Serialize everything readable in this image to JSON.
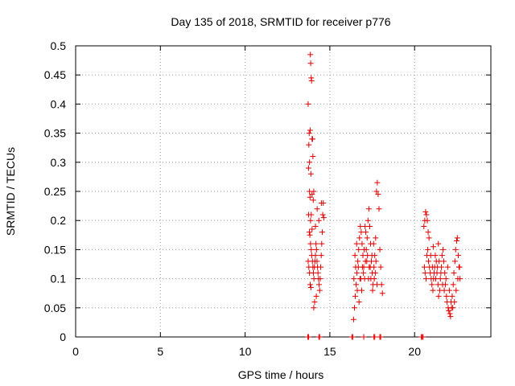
{
  "chart_data": {
    "type": "scatter",
    "title": "Day 135 of 2018, SRMTID for receiver p776",
    "xlabel": "GPS time / hours",
    "ylabel": "SRMTID / TECUs",
    "xlim": [
      0,
      24.5
    ],
    "ylim": [
      0,
      0.5
    ],
    "x_ticks": [
      0,
      5,
      10,
      15,
      20
    ],
    "x_tick_labels": [
      "0",
      "5",
      "10",
      "15",
      "20"
    ],
    "y_ticks": [
      0,
      0.05,
      0.1,
      0.15,
      0.2,
      0.25,
      0.3,
      0.35,
      0.4,
      0.45,
      0.5
    ],
    "y_tick_labels": [
      "0",
      "0.05",
      "0.1",
      "0.15",
      "0.2",
      "0.25",
      "0.3",
      "0.35",
      "0.4",
      "0.45",
      "0.5"
    ],
    "grid": true,
    "marker": "+",
    "colors": {
      "series": "#e00000",
      "grid": "#a0a0a0",
      "axis": "#000000"
    },
    "series": [
      {
        "name": "SRMTID",
        "points": [
          [
            13.72,
            0.4
          ],
          [
            13.76,
            0.33
          ],
          [
            13.8,
            0.3
          ],
          [
            13.85,
            0.485
          ],
          [
            13.87,
            0.47
          ],
          [
            13.9,
            0.445
          ],
          [
            13.92,
            0.44
          ],
          [
            13.78,
            0.35
          ],
          [
            13.84,
            0.355
          ],
          [
            13.95,
            0.34
          ],
          [
            13.98,
            0.34
          ],
          [
            13.74,
            0.29
          ],
          [
            13.88,
            0.28
          ],
          [
            14.0,
            0.31
          ],
          [
            13.8,
            0.25
          ],
          [
            13.83,
            0.24
          ],
          [
            13.86,
            0.2
          ],
          [
            13.9,
            0.21
          ],
          [
            13.95,
            0.245
          ],
          [
            14.02,
            0.235
          ],
          [
            14.05,
            0.25
          ],
          [
            13.75,
            0.21
          ],
          [
            13.79,
            0.18
          ],
          [
            13.82,
            0.175
          ],
          [
            13.86,
            0.16
          ],
          [
            13.9,
            0.15
          ],
          [
            13.93,
            0.14
          ],
          [
            13.97,
            0.13
          ],
          [
            14.0,
            0.12
          ],
          [
            14.03,
            0.11
          ],
          [
            14.06,
            0.1
          ],
          [
            14.09,
            0.12
          ],
          [
            14.12,
            0.13
          ],
          [
            14.15,
            0.14
          ],
          [
            14.18,
            0.16
          ],
          [
            14.21,
            0.15
          ],
          [
            14.24,
            0.13
          ],
          [
            14.27,
            0.12
          ],
          [
            14.3,
            0.11
          ],
          [
            14.33,
            0.1
          ],
          [
            14.36,
            0.09
          ],
          [
            14.4,
            0.08
          ],
          [
            14.43,
            0.1
          ],
          [
            14.46,
            0.12
          ],
          [
            14.49,
            0.14
          ],
          [
            14.52,
            0.16
          ],
          [
            14.55,
            0.18
          ],
          [
            14.58,
            0.21
          ],
          [
            14.61,
            0.23
          ],
          [
            14.64,
            0.205
          ],
          [
            13.72,
            0.13
          ],
          [
            13.76,
            0.12
          ],
          [
            13.8,
            0.11
          ],
          [
            13.84,
            0.09
          ],
          [
            13.88,
            0.085
          ],
          [
            14.1,
            0.06
          ],
          [
            14.05,
            0.05
          ],
          [
            14.2,
            0.07
          ],
          [
            14.35,
            0.2
          ],
          [
            14.25,
            0.22
          ],
          [
            14.15,
            0.19
          ],
          [
            13.95,
            0.185
          ],
          [
            14.5,
            0.23
          ],
          [
            16.4,
            0.03
          ],
          [
            16.45,
            0.05
          ],
          [
            16.5,
            0.07
          ],
          [
            16.55,
            0.09
          ],
          [
            16.6,
            0.11
          ],
          [
            16.65,
            0.13
          ],
          [
            16.7,
            0.15
          ],
          [
            16.75,
            0.17
          ],
          [
            16.8,
            0.19
          ],
          [
            16.85,
            0.18
          ],
          [
            16.9,
            0.16
          ],
          [
            16.95,
            0.14
          ],
          [
            17.0,
            0.12
          ],
          [
            17.05,
            0.1
          ],
          [
            17.1,
            0.13
          ],
          [
            17.15,
            0.15
          ],
          [
            17.2,
            0.17
          ],
          [
            17.25,
            0.2
          ],
          [
            17.3,
            0.22
          ],
          [
            17.35,
            0.19
          ],
          [
            17.4,
            0.16
          ],
          [
            17.45,
            0.13
          ],
          [
            17.5,
            0.11
          ],
          [
            17.55,
            0.09
          ],
          [
            17.6,
            0.12
          ],
          [
            17.65,
            0.14
          ],
          [
            17.7,
            0.17
          ],
          [
            17.75,
            0.25
          ],
          [
            17.8,
            0.265
          ],
          [
            17.85,
            0.245
          ],
          [
            17.9,
            0.22
          ],
          [
            17.95,
            0.15
          ],
          [
            18.0,
            0.12
          ],
          [
            18.05,
            0.09
          ],
          [
            18.1,
            0.075
          ],
          [
            16.42,
            0.1
          ],
          [
            16.52,
            0.12
          ],
          [
            16.62,
            0.08
          ],
          [
            16.72,
            0.06
          ],
          [
            16.82,
            0.1
          ],
          [
            16.92,
            0.12
          ],
          [
            17.02,
            0.15
          ],
          [
            17.12,
            0.18
          ],
          [
            17.22,
            0.14
          ],
          [
            17.32,
            0.12
          ],
          [
            17.42,
            0.1
          ],
          [
            17.52,
            0.08
          ],
          [
            17.62,
            0.1
          ],
          [
            17.72,
            0.13
          ],
          [
            16.48,
            0.14
          ],
          [
            16.58,
            0.16
          ],
          [
            16.68,
            0.12
          ],
          [
            16.78,
            0.1
          ],
          [
            16.88,
            0.08
          ],
          [
            16.98,
            0.11
          ],
          [
            17.08,
            0.19
          ],
          [
            17.18,
            0.13
          ],
          [
            17.28,
            0.1
          ],
          [
            17.38,
            0.12
          ],
          [
            17.48,
            0.14
          ],
          [
            17.58,
            0.16
          ],
          [
            17.68,
            0.11
          ],
          [
            17.78,
            0.09
          ],
          [
            20.55,
            0.19
          ],
          [
            20.6,
            0.2
          ],
          [
            20.65,
            0.215
          ],
          [
            20.7,
            0.21
          ],
          [
            20.75,
            0.2
          ],
          [
            20.8,
            0.18
          ],
          [
            20.85,
            0.17
          ],
          [
            20.58,
            0.12
          ],
          [
            20.62,
            0.11
          ],
          [
            20.68,
            0.1
          ],
          [
            20.72,
            0.14
          ],
          [
            20.78,
            0.15
          ],
          [
            20.82,
            0.13
          ],
          [
            20.88,
            0.12
          ],
          [
            20.92,
            0.11
          ],
          [
            20.98,
            0.1
          ],
          [
            21.02,
            0.09
          ],
          [
            21.08,
            0.08
          ],
          [
            21.12,
            0.1
          ],
          [
            21.18,
            0.12
          ],
          [
            21.22,
            0.14
          ],
          [
            21.28,
            0.13
          ],
          [
            21.32,
            0.11
          ],
          [
            21.38,
            0.09
          ],
          [
            21.42,
            0.07
          ],
          [
            21.48,
            0.08
          ],
          [
            21.52,
            0.1
          ],
          [
            21.58,
            0.12
          ],
          [
            21.62,
            0.14
          ],
          [
            21.68,
            0.15
          ],
          [
            21.72,
            0.13
          ],
          [
            21.78,
            0.11
          ],
          [
            21.82,
            0.09
          ],
          [
            21.88,
            0.07
          ],
          [
            21.92,
            0.06
          ],
          [
            21.98,
            0.05
          ],
          [
            22.02,
            0.045
          ],
          [
            22.08,
            0.04
          ],
          [
            22.12,
            0.035
          ],
          [
            22.18,
            0.05
          ],
          [
            22.22,
            0.07
          ],
          [
            22.28,
            0.09
          ],
          [
            22.32,
            0.11
          ],
          [
            22.38,
            0.13
          ],
          [
            22.42,
            0.15
          ],
          [
            22.48,
            0.165
          ],
          [
            22.52,
            0.17
          ],
          [
            22.58,
            0.14
          ],
          [
            22.62,
            0.12
          ],
          [
            22.68,
            0.1
          ],
          [
            20.95,
            0.14
          ],
          [
            21.05,
            0.12
          ],
          [
            21.15,
            0.11
          ],
          [
            21.25,
            0.1
          ],
          [
            21.35,
            0.12
          ],
          [
            21.45,
            0.13
          ],
          [
            21.55,
            0.11
          ],
          [
            21.65,
            0.09
          ],
          [
            21.75,
            0.08
          ],
          [
            21.85,
            0.1
          ],
          [
            21.95,
            0.12
          ],
          [
            22.05,
            0.08
          ],
          [
            22.15,
            0.06
          ],
          [
            22.25,
            0.05
          ],
          [
            22.35,
            0.06
          ],
          [
            22.45,
            0.08
          ],
          [
            22.55,
            0.1
          ],
          [
            22.65,
            0.12
          ],
          [
            21.1,
            0.155
          ],
          [
            21.4,
            0.16
          ],
          [
            13.7,
            0.0
          ],
          [
            13.75,
            0.0
          ],
          [
            14.35,
            0.0
          ],
          [
            14.4,
            0.0
          ],
          [
            16.3,
            0.0
          ],
          [
            16.35,
            0.0
          ],
          [
            17.0,
            0.0
          ],
          [
            17.6,
            0.0
          ],
          [
            17.65,
            0.0
          ],
          [
            17.95,
            0.0
          ],
          [
            18.0,
            0.0
          ],
          [
            20.4,
            0.0
          ],
          [
            20.45,
            0.0
          ],
          [
            20.5,
            0.0
          ]
        ]
      }
    ]
  }
}
